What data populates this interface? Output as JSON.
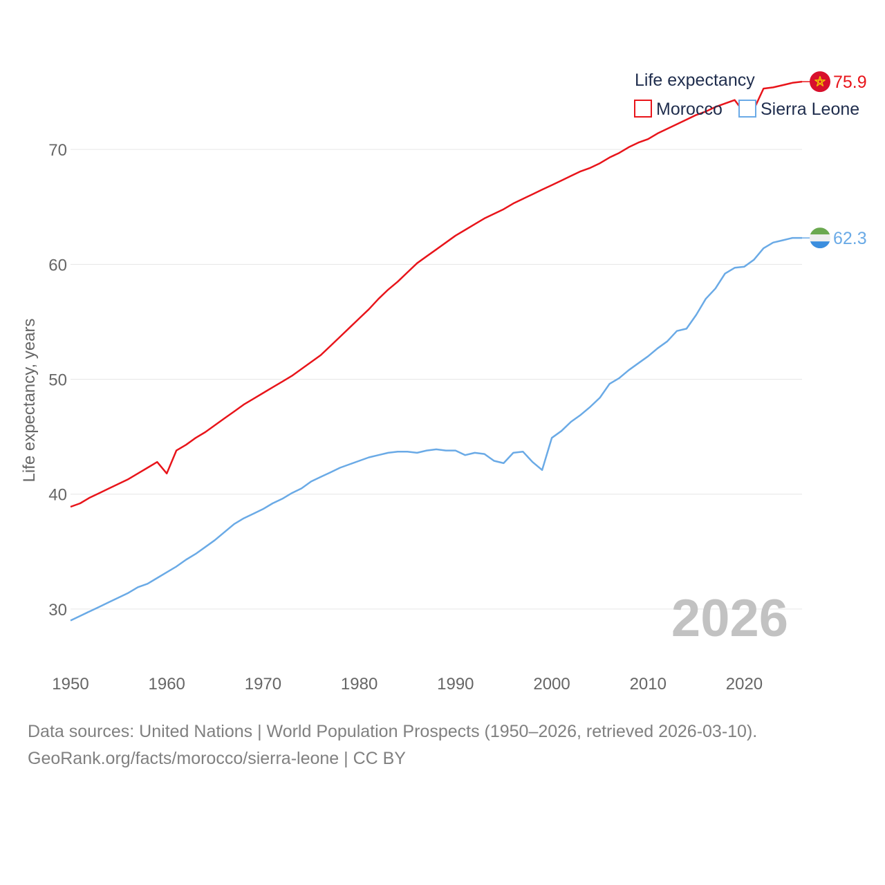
{
  "chart_data": {
    "type": "line",
    "legend_title": "Life expectancy",
    "ylabel": "Life expectancy, years",
    "year_label": "2026",
    "xlim": [
      1950,
      2026
    ],
    "ylim": [
      25,
      80
    ],
    "x_ticks": [
      1950,
      1960,
      1970,
      1980,
      1990,
      2000,
      2010,
      2020
    ],
    "y_ticks": [
      30,
      40,
      50,
      60,
      70
    ],
    "x": [
      1950,
      1951,
      1952,
      1953,
      1954,
      1955,
      1956,
      1957,
      1958,
      1959,
      1960,
      1961,
      1962,
      1963,
      1964,
      1965,
      1966,
      1967,
      1968,
      1969,
      1970,
      1971,
      1972,
      1973,
      1974,
      1975,
      1976,
      1977,
      1978,
      1979,
      1980,
      1981,
      1982,
      1983,
      1984,
      1985,
      1986,
      1987,
      1988,
      1989,
      1990,
      1991,
      1992,
      1993,
      1994,
      1995,
      1996,
      1997,
      1998,
      1999,
      2000,
      2001,
      2002,
      2003,
      2004,
      2005,
      2006,
      2007,
      2008,
      2009,
      2010,
      2011,
      2012,
      2013,
      2014,
      2015,
      2016,
      2017,
      2018,
      2019,
      2020,
      2021,
      2022,
      2023,
      2024,
      2025,
      2026
    ],
    "series": [
      {
        "name": "Morocco",
        "color": "#e8141a",
        "end_label": "75.9",
        "flag_icon": "morocco-flag-icon",
        "values": [
          38.9,
          39.2,
          39.7,
          40.1,
          40.5,
          40.9,
          41.3,
          41.8,
          42.3,
          42.8,
          41.8,
          43.8,
          44.3,
          44.9,
          45.4,
          46.0,
          46.6,
          47.2,
          47.8,
          48.3,
          48.8,
          49.3,
          49.8,
          50.3,
          50.9,
          51.5,
          52.1,
          52.9,
          53.7,
          54.5,
          55.3,
          56.1,
          57.0,
          57.8,
          58.5,
          59.3,
          60.1,
          60.7,
          61.3,
          61.9,
          62.5,
          63.0,
          63.5,
          64.0,
          64.4,
          64.8,
          65.3,
          65.7,
          66.1,
          66.5,
          66.9,
          67.3,
          67.7,
          68.1,
          68.4,
          68.8,
          69.3,
          69.7,
          70.2,
          70.6,
          70.9,
          71.4,
          71.8,
          72.2,
          72.6,
          73.0,
          73.3,
          73.7,
          74.0,
          74.3,
          73.2,
          73.5,
          75.3,
          75.4,
          75.6,
          75.8,
          75.9
        ]
      },
      {
        "name": "Sierra Leone",
        "color": "#6aaae6",
        "end_label": "62.3",
        "flag_icon": "sierra-leone-flag-icon",
        "values": [
          29.0,
          29.4,
          29.8,
          30.2,
          30.6,
          31.0,
          31.4,
          31.9,
          32.2,
          32.7,
          33.2,
          33.7,
          34.3,
          34.8,
          35.4,
          36.0,
          36.7,
          37.4,
          37.9,
          38.3,
          38.7,
          39.2,
          39.6,
          40.1,
          40.5,
          41.1,
          41.5,
          41.9,
          42.3,
          42.6,
          42.9,
          43.2,
          43.4,
          43.6,
          43.7,
          43.7,
          43.6,
          43.8,
          43.9,
          43.8,
          43.8,
          43.4,
          43.6,
          43.5,
          42.9,
          42.7,
          43.6,
          43.7,
          42.8,
          42.1,
          44.9,
          45.5,
          46.3,
          46.9,
          47.6,
          48.4,
          49.6,
          50.1,
          50.8,
          51.4,
          52.0,
          52.7,
          53.3,
          54.2,
          54.4,
          55.6,
          57.0,
          57.9,
          59.2,
          59.7,
          59.8,
          60.4,
          61.4,
          61.9,
          62.1,
          62.3,
          62.3
        ]
      }
    ]
  },
  "footer": {
    "line1": "Data sources: United Nations | World Population Prospects (1950–2026, retrieved 2026-03-10).",
    "line2": "GeoRank.org/facts/morocco/sierra-leone | CC BY"
  }
}
